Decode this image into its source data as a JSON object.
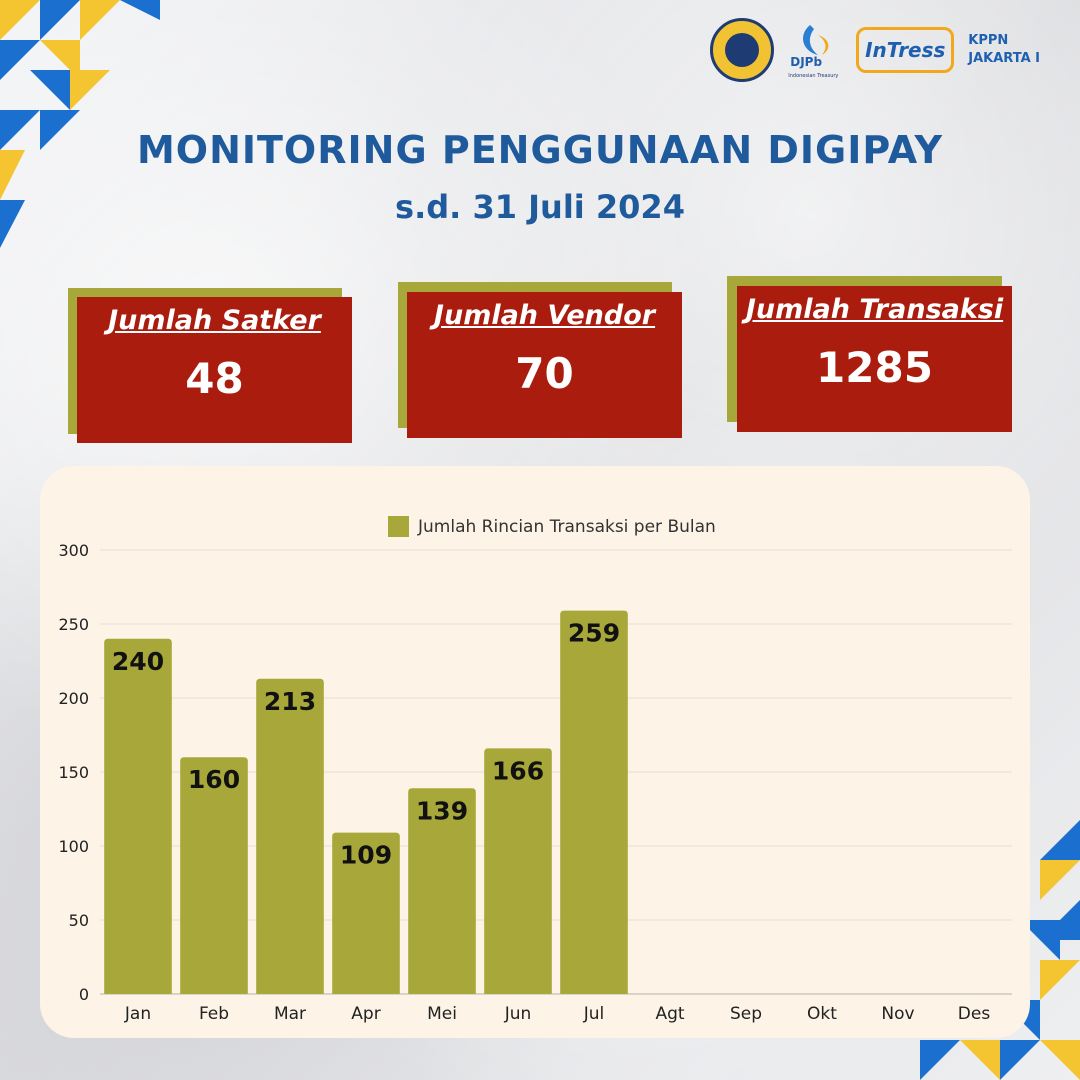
{
  "header": {
    "title": "MONITORING PENGGUNAAN DIGIPAY",
    "subtitle": "s.d. 31 Juli 2024",
    "logos": {
      "djpb": "DJPb",
      "djpb_sub": "Indonesian Treasury",
      "intress": "InTress",
      "kppn_line1": "KPPN",
      "kppn_line2": "JAKARTA I"
    }
  },
  "cards": [
    {
      "label": "Jumlah Satker",
      "value": "48"
    },
    {
      "label": "Jumlah Vendor",
      "value": "70"
    },
    {
      "label": "Jumlah Transaksi",
      "value": "1285"
    }
  ],
  "colors": {
    "title": "#1f5a9c",
    "card_face": "#a91c0e",
    "card_shadow": "#a8a83a",
    "bar": "#a8a83a",
    "panel": "#fdf3e7"
  },
  "chart_data": {
    "type": "bar",
    "categories": [
      "Jan",
      "Feb",
      "Mar",
      "Apr",
      "Mei",
      "Jun",
      "Jul",
      "Agt",
      "Sep",
      "Okt",
      "Nov",
      "Des"
    ],
    "series": [
      {
        "name": "Jumlah Rincian Transaksi per Bulan",
        "values": [
          240,
          160,
          213,
          109,
          139,
          166,
          259,
          null,
          null,
          null,
          null,
          null
        ]
      }
    ],
    "ylim": [
      0,
      300
    ],
    "yticks": [
      0,
      50,
      100,
      150,
      200,
      250,
      300
    ],
    "grid": true,
    "legend": "top-center",
    "data_labels": true
  }
}
